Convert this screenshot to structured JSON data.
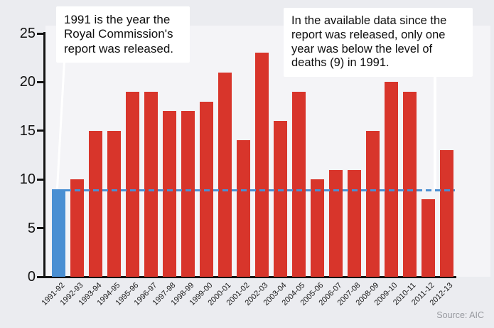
{
  "chart_data": {
    "type": "bar",
    "categories": [
      "1991-92",
      "1992-93",
      "1993-94",
      "1994-95",
      "1995-96",
      "1996-97",
      "1997-98",
      "1998-99",
      "1999-00",
      "2000-01",
      "2001-02",
      "2002-03",
      "2003-04",
      "2004-05",
      "2005-06",
      "2006-07",
      "2007-08",
      "2008-09",
      "2009-10",
      "2010-11",
      "2011-12",
      "2012-13"
    ],
    "values": [
      9,
      10,
      15,
      15,
      19,
      19,
      17,
      17,
      18,
      21,
      14,
      23,
      16,
      19,
      10,
      11,
      11,
      15,
      20,
      19,
      8,
      13
    ],
    "highlight_category": "1991-92",
    "highlight_index": 0,
    "title": "",
    "xlabel": "",
    "ylabel": "",
    "ylim": [
      0,
      25
    ],
    "yticks": [
      0,
      5,
      10,
      15,
      20,
      25
    ],
    "grid": false,
    "legend": "none",
    "reference_line": {
      "value": 9,
      "style": "dashed"
    },
    "colors": {
      "bar": "#d8352b",
      "highlight_bar": "#4a8fd3",
      "reference_line": "#4a8fd3",
      "background": "#ebecf0",
      "plot_background": "#f4f4f7",
      "axis": "#141414"
    }
  },
  "annotations": {
    "left": "1991 is the year the\nRoyal Commission's\nreport was released.",
    "right": "In the available data since the\nreport was released, only one\nyear was below the level of\ndeaths (9) in 1991."
  },
  "source": "Source: AIC"
}
